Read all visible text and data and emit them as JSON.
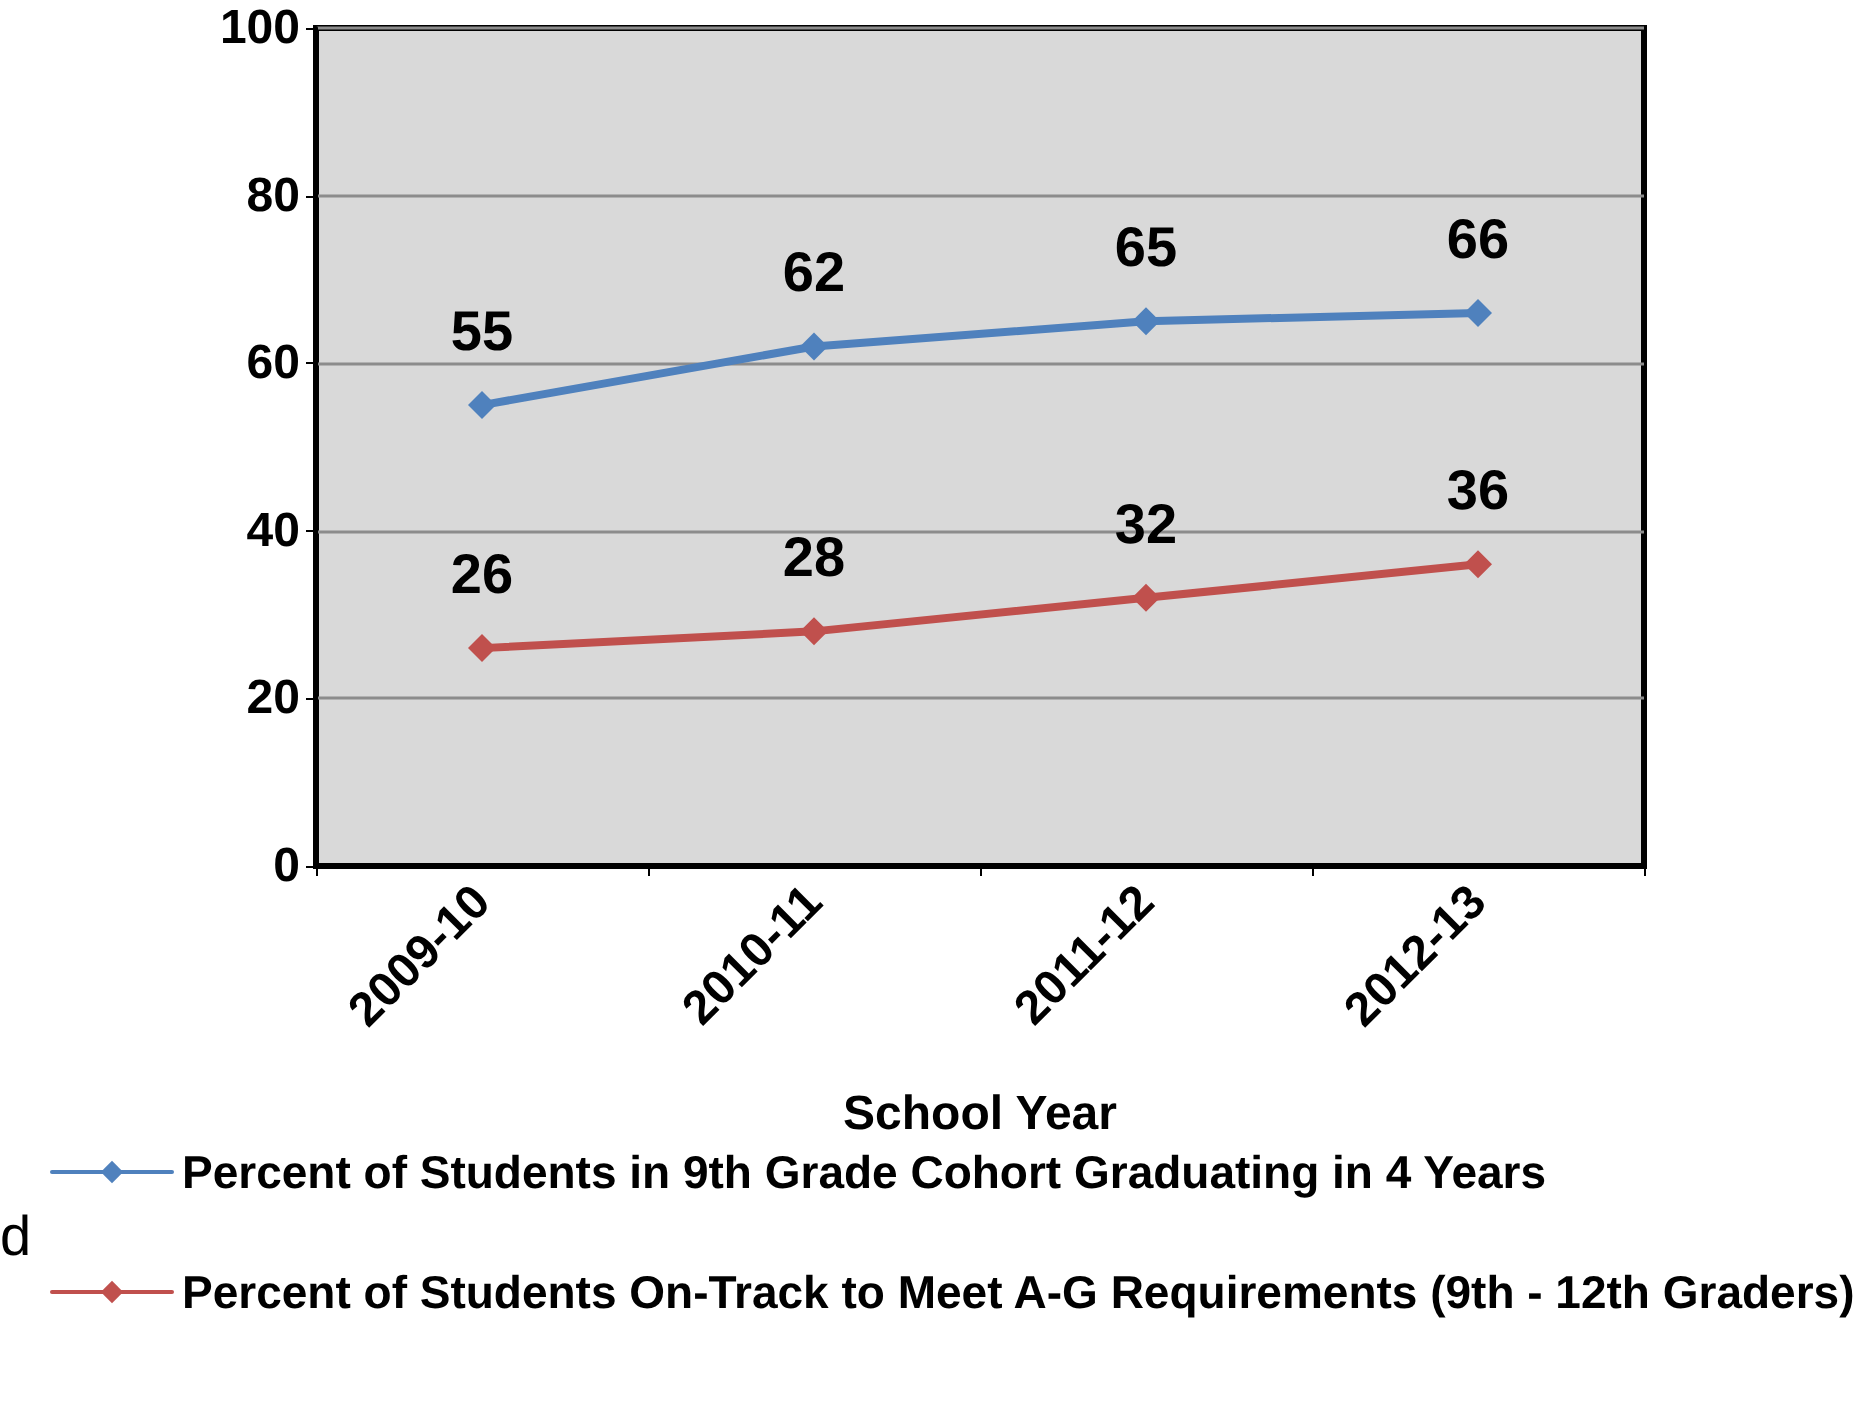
{
  "chart_data": {
    "type": "line",
    "xlabel": "School Year",
    "categories": [
      "2009-10",
      "2010-11",
      "2011-12",
      "2012-13"
    ],
    "series": [
      {
        "name": "Percent of Students in 9th Grade Cohort Graduating in 4 Years",
        "color": "#4f81bd",
        "values": [
          55,
          62,
          65,
          66
        ]
      },
      {
        "name": "Percent of Students On-Track to Meet A-G Requirements (9th - 12th Graders)",
        "color": "#c0504d",
        "values": [
          26,
          28,
          32,
          36
        ]
      }
    ],
    "ylim": [
      0,
      100
    ],
    "yticks": [
      0,
      20,
      40,
      60,
      80,
      100
    ],
    "grid": "y",
    "legend": "bottom",
    "marker": "diamond",
    "line_style": "solid",
    "data_labels": true,
    "annotations": [
      "d"
    ]
  }
}
